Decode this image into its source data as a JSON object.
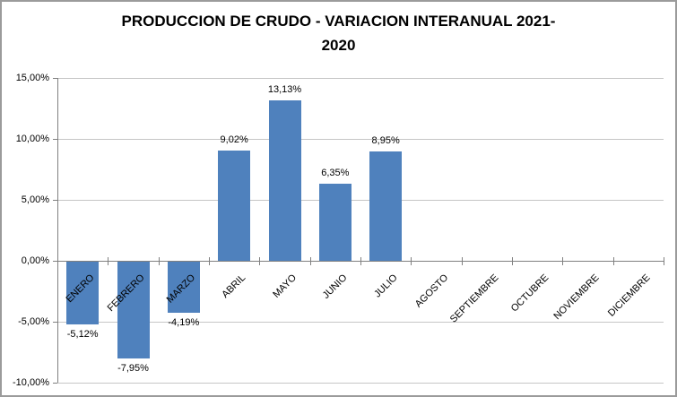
{
  "title": {
    "line1": "PRODUCCION DE CRUDO - VARIACION INTERANUAL 2021-",
    "line2": "2020"
  },
  "chart_data": {
    "type": "bar",
    "title": "PRODUCCION DE CRUDO - VARIACION INTERANUAL 2021-2020",
    "xlabel": "",
    "ylabel": "",
    "categories": [
      "ENERO",
      "FEBRERO",
      "MARZO",
      "ABRIL",
      "MAYO",
      "JUNIO",
      "JULIO",
      "AGOSTO",
      "SEPTIEMBRE",
      "OCTUBRE",
      "NOVIEMBRE",
      "DICIEMBRE"
    ],
    "values": [
      -5.12,
      -7.95,
      -4.19,
      9.02,
      13.13,
      6.35,
      8.95,
      null,
      null,
      null,
      null,
      null
    ],
    "data_labels": [
      "-5,12%",
      "-7,95%",
      "-4,19%",
      "9,02%",
      "13,13%",
      "6,35%",
      "8,95%",
      "",
      "",
      "",
      "",
      ""
    ],
    "y_ticks": [
      {
        "value": 15,
        "label": "15,00%"
      },
      {
        "value": 10,
        "label": "10,00%"
      },
      {
        "value": 5,
        "label": "5,00%"
      },
      {
        "value": 0,
        "label": "0,00%"
      },
      {
        "value": -5,
        "label": "-5,00%"
      },
      {
        "value": -10,
        "label": "-10,00%"
      }
    ],
    "ylim": [
      -10,
      15
    ],
    "grid": true,
    "legend": false
  },
  "colors": {
    "bar": "#4f81bd",
    "gridline": "#c6c6c6",
    "axis": "#808080",
    "border": "#9b9b9b",
    "background": "#ffffff",
    "text": "#000000"
  }
}
